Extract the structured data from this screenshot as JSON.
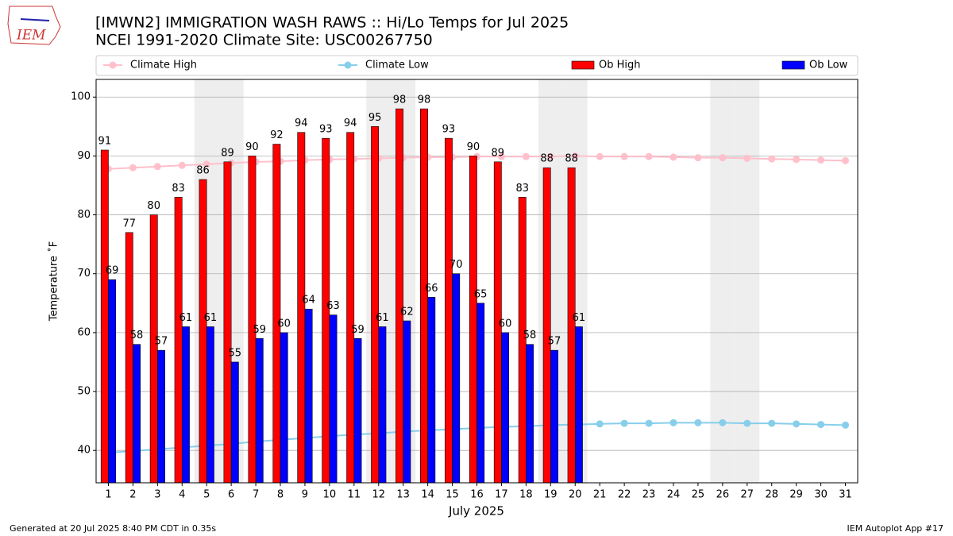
{
  "chart_data": {
    "type": "bar",
    "title": "[IMWN2] IMMIGRATION WASH RAWS :: Hi/Lo Temps for Jul 2025",
    "subtitle": "NCEI 1991-2020 Climate Site: USC00267750",
    "logo_text": "IEM",
    "ylabel": "Temperature ˚F",
    "xlabel": "July 2025",
    "footer_left": "Generated at 20 Jul 2025 8:40 PM CDT in 0.35s",
    "footer_right": "IEM Autoplot App #17",
    "x": [
      1,
      2,
      3,
      4,
      5,
      6,
      7,
      8,
      9,
      10,
      11,
      12,
      13,
      14,
      15,
      16,
      17,
      18,
      19,
      20,
      21,
      22,
      23,
      24,
      25,
      26,
      27,
      28,
      29,
      30,
      31
    ],
    "xlim": [
      0.5,
      31.5
    ],
    "xticks": [
      1,
      2,
      3,
      4,
      5,
      6,
      7,
      8,
      9,
      10,
      11,
      12,
      13,
      14,
      15,
      16,
      17,
      18,
      19,
      20,
      21,
      22,
      23,
      24,
      25,
      26,
      27,
      28,
      29,
      30,
      31
    ],
    "ylim": [
      34.5,
      103
    ],
    "yticks": [
      40,
      50,
      60,
      70,
      80,
      90,
      100
    ],
    "grid": true,
    "shaded_days": [
      5,
      6,
      12,
      13,
      19,
      20,
      26,
      27
    ],
    "series": [
      {
        "name": "Climate High",
        "type": "line",
        "color": "#ffc0cb",
        "values": [
          87.8,
          88.0,
          88.2,
          88.4,
          88.6,
          88.8,
          89.0,
          89.1,
          89.3,
          89.4,
          89.5,
          89.6,
          89.7,
          89.8,
          89.8,
          89.9,
          89.9,
          89.9,
          89.9,
          90.0,
          89.9,
          89.9,
          89.9,
          89.8,
          89.7,
          89.7,
          89.6,
          89.5,
          89.4,
          89.3,
          89.2
        ]
      },
      {
        "name": "Climate Low",
        "type": "line",
        "color": "#87ceeb",
        "values": [
          39.6,
          39.9,
          40.2,
          40.5,
          40.8,
          41.1,
          41.5,
          41.8,
          42.1,
          42.4,
          42.7,
          42.9,
          43.2,
          43.4,
          43.6,
          43.8,
          44.0,
          44.1,
          44.3,
          44.4,
          44.5,
          44.6,
          44.6,
          44.7,
          44.7,
          44.7,
          44.6,
          44.6,
          44.5,
          44.4,
          44.3
        ]
      },
      {
        "name": "Ob High",
        "type": "bar",
        "color": "#ff0000",
        "values": [
          91,
          77,
          80,
          83,
          86,
          89,
          90,
          92,
          94,
          93,
          94,
          95,
          98,
          98,
          93,
          90,
          89,
          83,
          88,
          88,
          null,
          null,
          null,
          null,
          null,
          null,
          null,
          null,
          null,
          null,
          null
        ]
      },
      {
        "name": "Ob Low",
        "type": "bar",
        "color": "#0000ff",
        "values": [
          69,
          58,
          57,
          61,
          61,
          55,
          59,
          60,
          64,
          63,
          59,
          61,
          62,
          66,
          70,
          65,
          60,
          58,
          57,
          61,
          null,
          null,
          null,
          null,
          null,
          null,
          null,
          null,
          null,
          null,
          null
        ]
      }
    ]
  }
}
